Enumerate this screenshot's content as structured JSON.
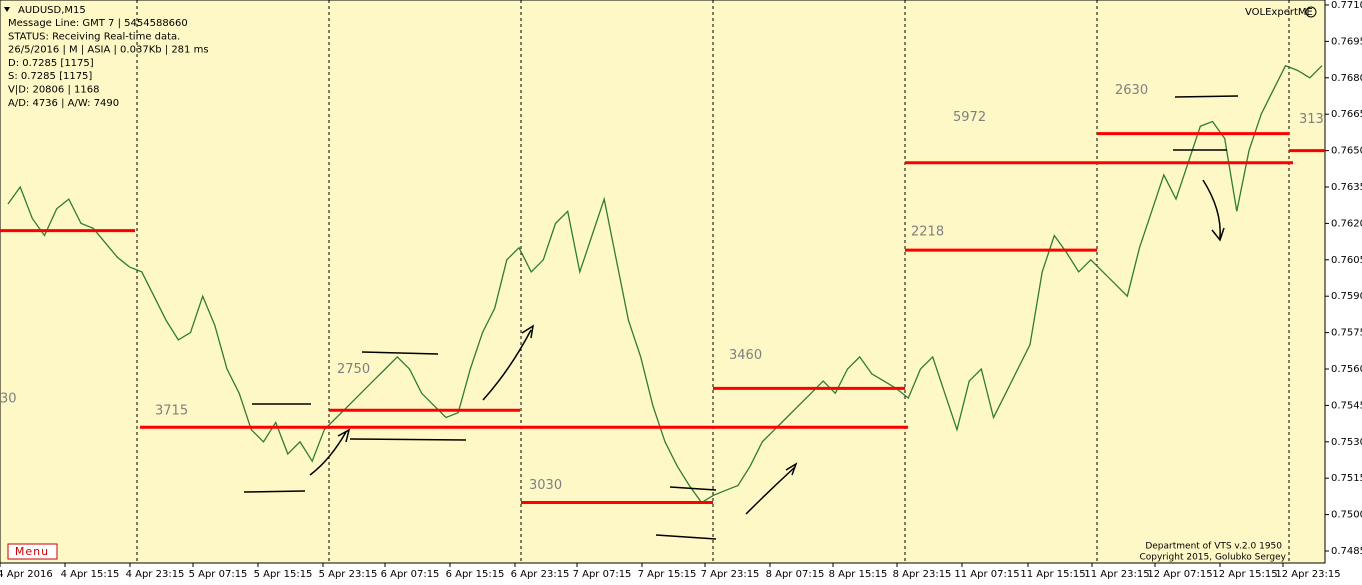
{
  "chart_data": {
    "type": "line",
    "symbol": "AUDUSD,M15",
    "info": [
      "Message Line: GMT 7 | 5454588660",
      "STATUS:  Receiving Real-time data.",
      "26/5/2016 | M | ASIA | 0.037Kb | 281 ms",
      "D: 0.7285  [1175]",
      "S: 0.7285  [1175]",
      "V|D: 20806 | 1168",
      "A/D: 4736 | A/W: 7490"
    ],
    "indicator": "VOLExpertME",
    "footer": [
      "Department of VTS  v.2.0 1950",
      "Copyright 2015, Golubko Sergey"
    ],
    "menu": "Menu",
    "cut_label": "30",
    "color": "#2f7d2f",
    "x_labels": [
      "4 Apr 2016",
      "4 Apr 15:15",
      "4 Apr 23:15",
      "5 Apr 07:15",
      "5 Apr 15:15",
      "5 Apr 23:15",
      "6 Apr 07:15",
      "6 Apr 15:15",
      "6 Apr 23:15",
      "7 Apr 07:15",
      "7 Apr 15:15",
      "7 Apr 23:15",
      "8 Apr 07:15",
      "8 Apr 15:15",
      "8 Apr 23:15",
      "11 Apr 07:15",
      "11 Apr 15:15",
      "11 Apr 23:15",
      "12 Apr 07:15",
      "12 Apr 15:15",
      "12 Apr 23:15"
    ],
    "values": [
      0.7628,
      0.7635,
      0.7622,
      0.7615,
      0.7626,
      0.763,
      0.762,
      0.7618,
      0.7612,
      0.7606,
      0.7602,
      0.76,
      0.759,
      0.758,
      0.7572,
      0.7575,
      0.759,
      0.7578,
      0.756,
      0.755,
      0.7535,
      0.753,
      0.7538,
      0.7525,
      0.753,
      0.7522,
      0.7535,
      0.754,
      0.7545,
      0.755,
      0.7555,
      0.756,
      0.7565,
      0.756,
      0.755,
      0.7545,
      0.754,
      0.7542,
      0.756,
      0.7575,
      0.7585,
      0.7605,
      0.761,
      0.76,
      0.7605,
      0.762,
      0.7625,
      0.76,
      0.7615,
      0.763,
      0.7605,
      0.758,
      0.7565,
      0.7545,
      0.753,
      0.752,
      0.7512,
      0.7505,
      0.7508,
      0.751,
      0.7512,
      0.752,
      0.753,
      0.7535,
      0.754,
      0.7545,
      0.755,
      0.7555,
      0.755,
      0.756,
      0.7565,
      0.7558,
      0.7555,
      0.7552,
      0.7548,
      0.756,
      0.7565,
      0.755,
      0.7535,
      0.7555,
      0.756,
      0.754,
      0.755,
      0.756,
      0.757,
      0.76,
      0.7615,
      0.7608,
      0.76,
      0.7605,
      0.76,
      0.7595,
      0.759,
      0.761,
      0.7625,
      0.764,
      0.763,
      0.7645,
      0.766,
      0.7662,
      0.7655,
      0.7625,
      0.765,
      0.7665,
      0.7675,
      0.7685,
      0.7683,
      0.768,
      0.7685
    ],
    "levels": [
      {
        "price": 0.7617
      },
      {
        "price": 0.7536,
        "label": "3715"
      },
      {
        "price": 0.7543,
        "label": "2750"
      },
      {
        "price": 0.7505,
        "label": "3030"
      },
      {
        "price": 0.7552,
        "label": "3460"
      },
      {
        "price": 0.7609,
        "label": "2218"
      },
      {
        "price": 0.7645,
        "label": "5972"
      },
      {
        "price": 0.7657,
        "label": "2630"
      },
      {
        "price": 0.765,
        "label": "313"
      }
    ],
    "level_color": "#ff0000",
    "ylim": [
      0.7485,
      0.771
    ],
    "yticks": [
      {
        "value": 0.771,
        "label": "0.7710"
      },
      0.7695,
      {
        "value": 0.768,
        "label": "0.7680"
      },
      0.7665,
      {
        "value": 0.765,
        "label": "0.7650"
      },
      0.7635,
      {
        "value": 0.762,
        "label": "0.7620"
      },
      0.7605,
      {
        "value": 0.759,
        "label": "0.7590"
      },
      0.7575,
      {
        "value": 0.756,
        "label": "0.7560"
      },
      0.7545,
      {
        "value": 0.753,
        "label": "0.7530"
      },
      0.7515,
      {
        "value": 0.75,
        "label": "0.7500"
      },
      0.7485
    ]
  }
}
